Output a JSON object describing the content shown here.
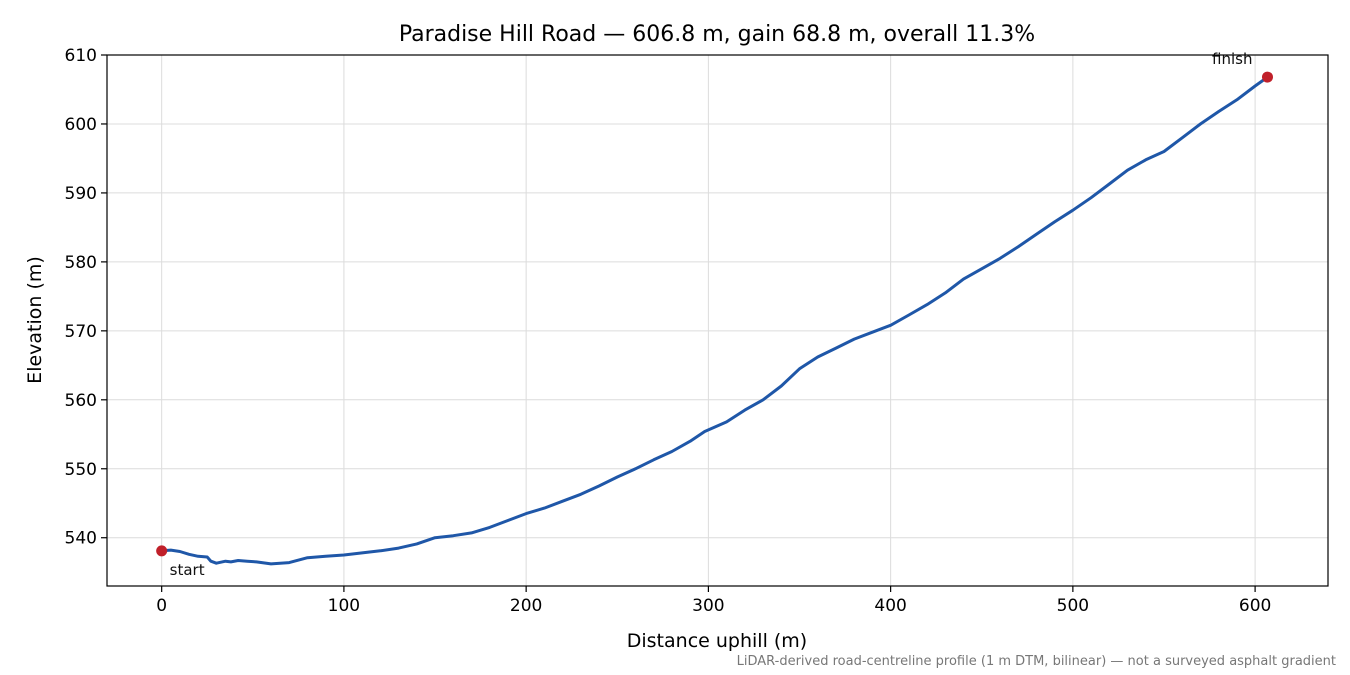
{
  "chart_data": {
    "type": "line",
    "title": "Paradise Hill Road — 606.8 m, gain 68.8 m, overall 11.3%",
    "xlabel": "Distance uphill (m)",
    "ylabel": "Elevation (m)",
    "xlim": [
      -30,
      640
    ],
    "ylim": [
      533,
      610
    ],
    "xticks": [
      0,
      100,
      200,
      300,
      400,
      500,
      600
    ],
    "yticks": [
      540,
      550,
      560,
      570,
      580,
      590,
      600,
      610
    ],
    "grid": true,
    "series": [
      {
        "color": "#1f57a8",
        "x": [
          0,
          5,
          10,
          15,
          20,
          25,
          27,
          30,
          35,
          38,
          42,
          47,
          52,
          55,
          60,
          65,
          70,
          80,
          90,
          100,
          110,
          120,
          130,
          140,
          150,
          160,
          170,
          180,
          190,
          200,
          210,
          220,
          230,
          240,
          250,
          260,
          270,
          280,
          290,
          298,
          310,
          320,
          330,
          340,
          350,
          360,
          370,
          380,
          390,
          400,
          410,
          420,
          430,
          440,
          450,
          460,
          470,
          480,
          490,
          500,
          510,
          520,
          530,
          540,
          550,
          560,
          570,
          580,
          590,
          600,
          606.8
        ],
        "y": [
          538.1,
          538.2,
          538.0,
          537.6,
          537.3,
          537.2,
          536.6,
          536.3,
          536.6,
          536.5,
          536.7,
          536.6,
          536.5,
          536.4,
          536.2,
          536.3,
          536.4,
          537.1,
          537.3,
          537.5,
          537.8,
          538.1,
          538.5,
          539.1,
          540.0,
          540.3,
          540.7,
          541.5,
          542.5,
          543.5,
          544.3,
          545.3,
          546.3,
          547.5,
          548.8,
          550.0,
          551.3,
          552.5,
          554.0,
          555.4,
          556.8,
          558.5,
          560.0,
          562.0,
          564.5,
          566.2,
          567.5,
          568.8,
          569.8,
          570.8,
          572.3,
          573.8,
          575.5,
          577.5,
          579.0,
          580.5,
          582.2,
          584.0,
          585.8,
          587.5,
          589.3,
          591.3,
          593.3,
          594.8,
          596.0,
          598.0,
          600.0,
          601.8,
          603.5,
          605.5,
          606.8
        ]
      }
    ],
    "annotations": [
      {
        "label": "start",
        "x": 0,
        "y": 538.1
      },
      {
        "label": "finish",
        "x": 606.8,
        "y": 606.8
      }
    ],
    "footnote": "LiDAR-derived road-centreline profile (1 m DTM, bilinear) — not a surveyed asphalt gradient"
  },
  "colors": {
    "line": "#1f57a8",
    "marker": "#c0202a",
    "grid": "#dcdcdc",
    "footnote": "#777777"
  }
}
